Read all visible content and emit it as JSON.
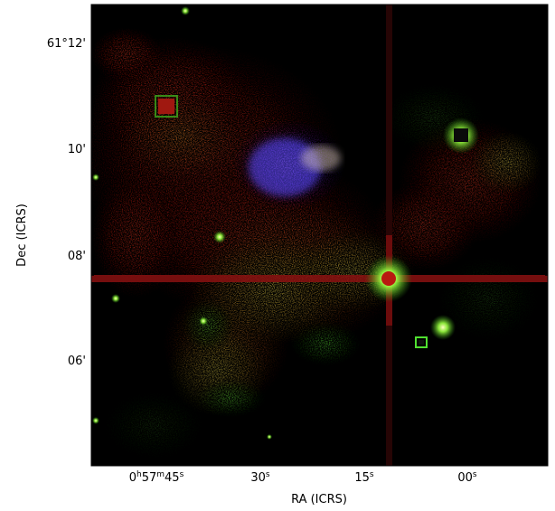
{
  "figure": {
    "xlabel": "RA (ICRS)",
    "ylabel": "Dec (ICRS)",
    "y_ticks": [
      "61°12'",
      "10'",
      "08'",
      "06'"
    ],
    "x_ticks": [
      {
        "hours": "0",
        "h": "h",
        "minutes": "57",
        "m": "m",
        "seconds": "45",
        "s": "s"
      },
      {
        "seconds": "30",
        "s": "s"
      },
      {
        "seconds": "15",
        "s": "s"
      },
      {
        "seconds": "00",
        "s": "s"
      }
    ],
    "colors": {
      "background": "#000000",
      "red_channel": "#c81e14",
      "green_channel": "#46e628",
      "blue_channel": "#3c32ff",
      "artifact_line": "#7a0a0a"
    }
  }
}
